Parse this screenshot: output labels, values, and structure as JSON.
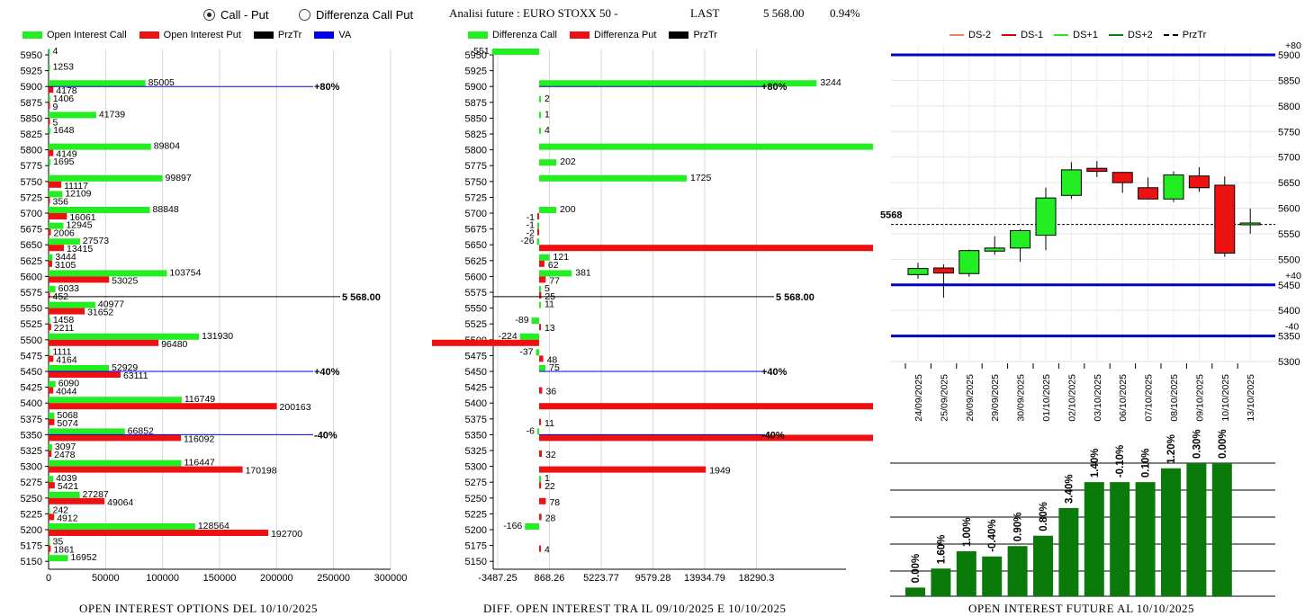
{
  "header": {
    "radio_call_put": "Call - Put",
    "radio_diff": "Differenza Call Put",
    "analysis_label": "Analisi future : EURO STOXX 50 -",
    "last_label": "LAST",
    "last_value": "5 568.00",
    "last_change": "0.94%"
  },
  "legend_left": [
    {
      "label": "Open Interest Call",
      "color": "#22ee22"
    },
    {
      "label": "Open Interest Put",
      "color": "#ee1111"
    },
    {
      "label": "PrzTr",
      "color": "#000000"
    },
    {
      "label": "VA",
      "color": "#0000ee"
    }
  ],
  "legend_mid": [
    {
      "label": "Differenza Call",
      "color": "#22ee22"
    },
    {
      "label": "Differenza Put",
      "color": "#ee1111"
    },
    {
      "label": "PrzTr",
      "color": "#000000"
    }
  ],
  "legend_right": [
    {
      "label": "DS-2",
      "color": "#f08060",
      "style": "line"
    },
    {
      "label": "DS-1",
      "color": "#dd0000",
      "style": "line"
    },
    {
      "label": "DS+1",
      "color": "#22ee22",
      "style": "line"
    },
    {
      "label": "DS+2",
      "color": "#117711",
      "style": "line"
    },
    {
      "label": "PrzTr",
      "color": "#000000",
      "style": "dash"
    }
  ],
  "titles": {
    "left": "OPEN INTEREST OPTIONS DEL 10/10/2025",
    "mid": "DIFF. OPEN INTEREST TRA IL 09/10/2025 E 10/10/2025",
    "right": "OPEN INTEREST FUTURE AL 10/10/2025"
  },
  "colors": {
    "call": "#22ee22",
    "put": "#ee1111",
    "va": "#0000ee",
    "candle_up": "#22ee22",
    "candle_down": "#ee1111",
    "bar_green": "#0a7a0a",
    "band_blue": "#0000cc"
  },
  "chart_data": [
    {
      "type": "bar",
      "orientation": "horizontal",
      "strikes": [
        5950,
        5925,
        5900,
        5875,
        5850,
        5825,
        5800,
        5775,
        5750,
        5725,
        5700,
        5675,
        5650,
        5625,
        5600,
        5575,
        5550,
        5525,
        5500,
        5475,
        5450,
        5425,
        5400,
        5375,
        5350,
        5325,
        5300,
        5275,
        5250,
        5225,
        5200,
        5175,
        5150
      ],
      "series": [
        {
          "name": "Open Interest Call",
          "values": [
            4,
            1253,
            85005,
            1406,
            41739,
            1648,
            89804,
            1695,
            99897,
            12109,
            88848,
            12945,
            27573,
            3444,
            103754,
            6033,
            40977,
            1458,
            131930,
            1111,
            52929,
            6090,
            116749,
            5068,
            66852,
            3097,
            116447,
            4039,
            27287,
            242,
            128564,
            35,
            16952
          ]
        },
        {
          "name": "Open Interest Put",
          "values": [
            0,
            0,
            4178,
            9,
            5,
            0,
            4149,
            0,
            11117,
            356,
            16061,
            2006,
            13415,
            3105,
            53025,
            452,
            31652,
            2211,
            96480,
            4164,
            63111,
            4044,
            200163,
            5074,
            116092,
            2478,
            170198,
            5421,
            49064,
            4912,
            192700,
            1861,
            0
          ]
        }
      ],
      "x_ticks": [
        "0",
        "50000",
        "100000",
        "150000",
        "200000",
        "250000",
        "300000"
      ],
      "xlim": [
        0,
        300000
      ],
      "ref_lines": [
        {
          "strike": 5900,
          "label": "+80%"
        },
        {
          "strike": 5450,
          "label": "+40%"
        },
        {
          "strike": 5350,
          "label": "-40%"
        }
      ],
      "price_line": {
        "value": 5568,
        "label": "5 568.00"
      }
    },
    {
      "type": "bar",
      "orientation": "horizontal",
      "strikes": [
        5950,
        5925,
        5900,
        5875,
        5850,
        5825,
        5800,
        5775,
        5750,
        5725,
        5700,
        5675,
        5650,
        5625,
        5600,
        5575,
        5550,
        5525,
        5500,
        5475,
        5450,
        5425,
        5400,
        5375,
        5350,
        5325,
        5300,
        5275,
        5250,
        5225,
        5200,
        5175,
        5150
      ],
      "series": [
        {
          "name": "Differenza Call",
          "values": [
            -551,
            null,
            3244,
            2,
            1,
            4,
            4145,
            202,
            1725,
            null,
            200,
            -1,
            -26,
            121,
            381,
            5,
            11,
            -89,
            -224,
            -37,
            75,
            null,
            null,
            null,
            -6,
            null,
            null,
            1,
            null,
            null,
            -166,
            null,
            null
          ]
        },
        {
          "name": "Differenza Put",
          "values": [
            null,
            null,
            null,
            null,
            null,
            null,
            null,
            null,
            null,
            null,
            -1,
            -2,
            4700,
            62,
            77,
            25,
            null,
            13,
            -2405,
            48,
            null,
            36,
            10674,
            11,
            10753,
            32,
            1949,
            22,
            78,
            28,
            null,
            4,
            null
          ]
        }
      ],
      "x_ticks": [
        "-3487.25",
        "868.26",
        "5223.77",
        "9579.28",
        "13934.79",
        "18290.3"
      ],
      "xlim": [
        -3487.25,
        18290.3
      ],
      "ref_lines": [
        {
          "strike": 5900,
          "label": "+80%"
        },
        {
          "strike": 5450,
          "label": "+40%"
        },
        {
          "strike": 5350,
          "label": "-40%"
        }
      ],
      "price_line": {
        "value": 5568,
        "label": "5 568.00"
      }
    },
    {
      "type": "candlestick",
      "dates": [
        "24/09/2025",
        "25/09/2025",
        "26/09/2025",
        "29/09/2025",
        "30/09/2025",
        "01/10/2025",
        "02/10/2025",
        "03/10/2025",
        "06/10/2025",
        "07/10/2025",
        "08/10/2025",
        "09/10/2025",
        "10/10/2025",
        "13/10/2025"
      ],
      "ohlc": [
        [
          5470,
          5493,
          5462,
          5482
        ],
        [
          5483,
          5490,
          5425,
          5473
        ],
        [
          5472,
          5519,
          5466,
          5517
        ],
        [
          5516,
          5545,
          5509,
          5522
        ],
        [
          5522,
          5559,
          5495,
          5556
        ],
        [
          5547,
          5640,
          5518,
          5620
        ],
        [
          5625,
          5690,
          5618,
          5675
        ],
        [
          5678,
          5692,
          5661,
          5672
        ],
        [
          5670,
          5668,
          5630,
          5650
        ],
        [
          5640,
          5660,
          5618,
          5618
        ],
        [
          5618,
          5672,
          5612,
          5665
        ],
        [
          5663,
          5680,
          5632,
          5640
        ],
        [
          5645,
          5662,
          5505,
          5512
        ],
        [
          5568,
          5599,
          5550,
          5571
        ]
      ],
      "y_ticks": [
        5300,
        5350,
        5400,
        5450,
        5500,
        5550,
        5600,
        5650,
        5700,
        5750,
        5800,
        5850,
        5900
      ],
      "ylim": [
        5300,
        5900
      ],
      "bands": [
        {
          "value": 5900,
          "label": "+80"
        },
        {
          "value": 5450,
          "label": "+40"
        },
        {
          "value": 5350,
          "label": "-40"
        }
      ],
      "price_line": {
        "value": 5568,
        "label": "5568"
      }
    },
    {
      "type": "bar",
      "values": [
        0.5,
        1.6,
        2.6,
        2.3,
        2.9,
        3.5,
        5.1,
        6.6,
        6.6,
        6.6,
        7.4,
        7.7,
        7.7
      ],
      "labels": [
        "0.00%",
        "1.60%",
        "1.00%",
        "-0.40%",
        "0.90%",
        "0.80%",
        "3.40%",
        "1.40%",
        "-0.10%",
        "0.10%",
        "1.20%",
        "0.30%",
        "0.00%"
      ],
      "ylim": [
        0,
        7.7
      ]
    }
  ]
}
